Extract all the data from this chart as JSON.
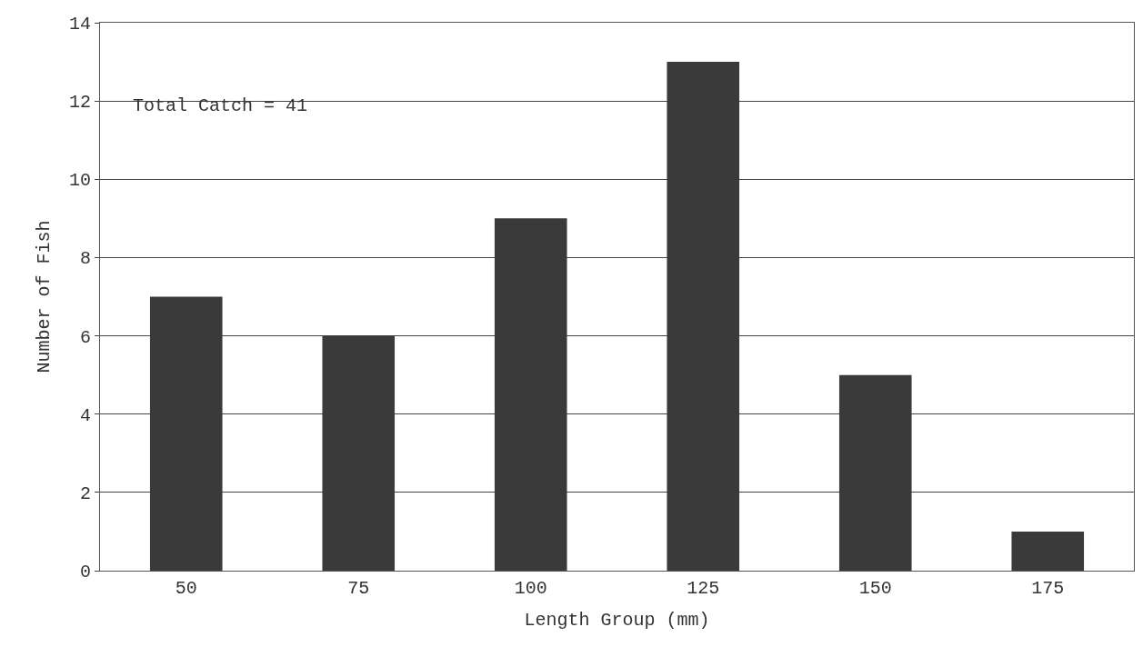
{
  "chart_data": {
    "type": "bar",
    "xlabel": "Length Group (mm)",
    "ylabel": "Number of Fish",
    "categories": [
      "50",
      "75",
      "100",
      "125",
      "150",
      "175"
    ],
    "values": [
      7,
      6,
      9,
      13,
      5,
      1
    ],
    "color": "#3a3a3a",
    "ylim": [
      0,
      14
    ],
    "yticks": [
      0,
      2,
      4,
      6,
      8,
      10,
      12,
      14
    ],
    "grid": "y",
    "annotations": [
      "Total Catch = 41"
    ]
  }
}
